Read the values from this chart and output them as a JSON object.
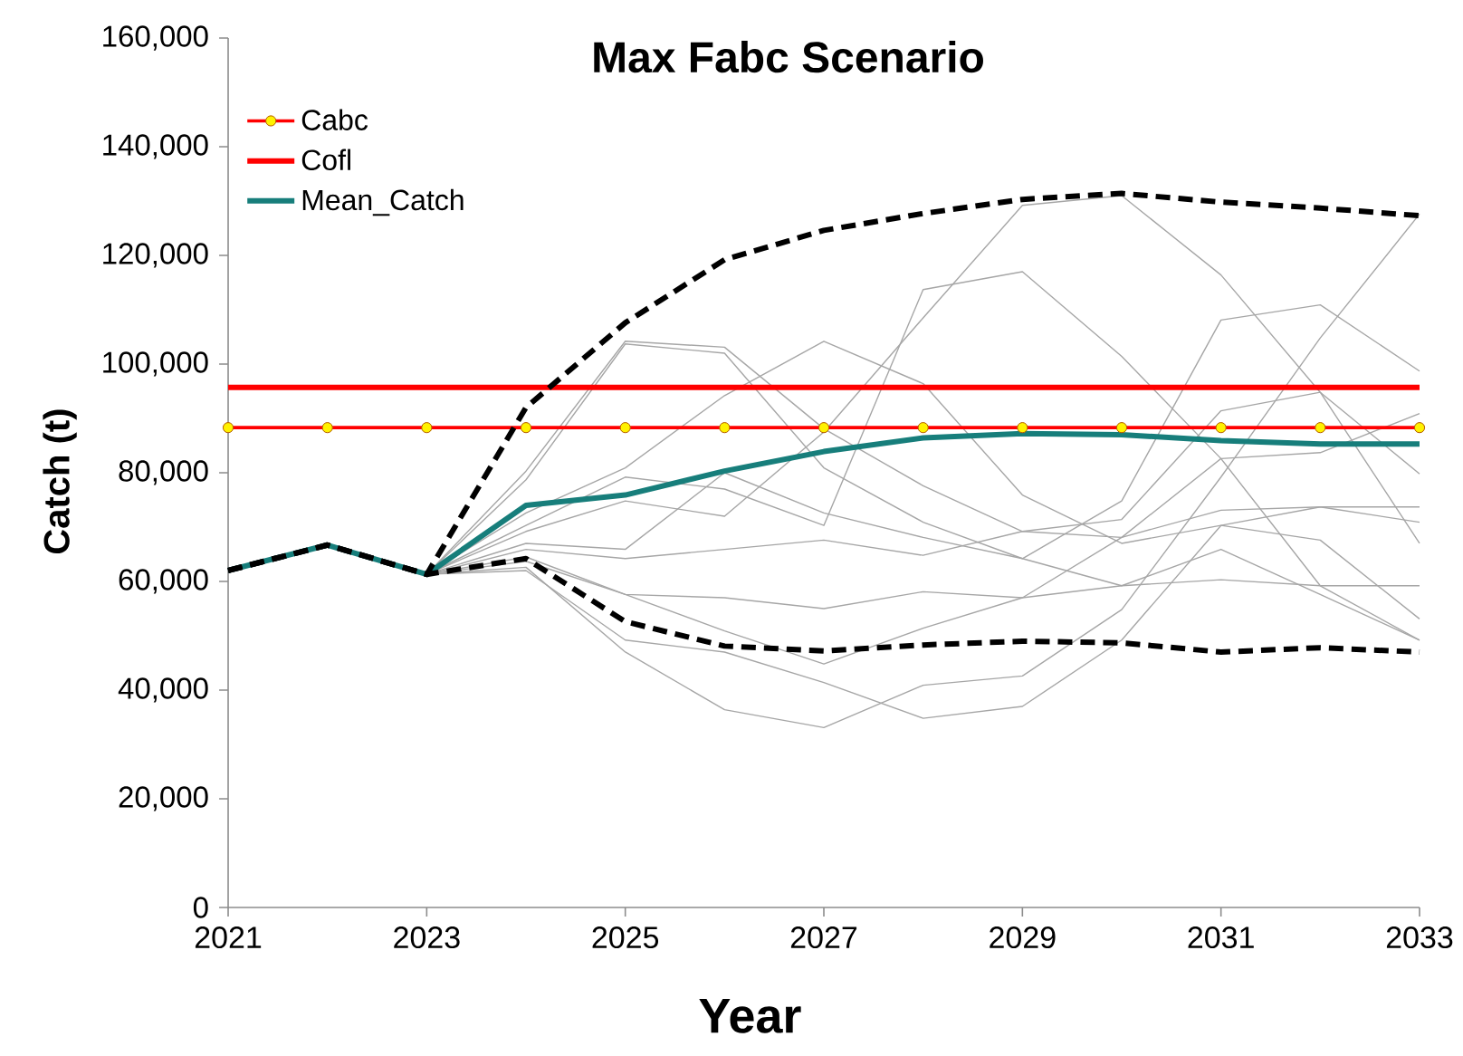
{
  "chart_data": {
    "type": "line",
    "title": "Max Fabc Scenario",
    "xlabel": "Year",
    "ylabel": "Catch (t)",
    "x": [
      2021,
      2022,
      2023,
      2024,
      2025,
      2026,
      2027,
      2028,
      2029,
      2030,
      2031,
      2032,
      2033
    ],
    "xlim": [
      2021,
      2033
    ],
    "xticks": [
      2021,
      2023,
      2025,
      2027,
      2029,
      2031,
      2033
    ],
    "ylim": [
      0,
      160000
    ],
    "yticks": [
      {
        "value": 0,
        "label": "0"
      },
      {
        "value": 20000,
        "label": "20,000"
      },
      {
        "value": 40000,
        "label": "40,000"
      },
      {
        "value": 60000,
        "label": "60,000"
      },
      {
        "value": 80000,
        "label": "80,000"
      },
      {
        "value": 100000,
        "label": "100,000"
      },
      {
        "value": 120000,
        "label": "120,000"
      },
      {
        "value": 140000,
        "label": "140,000"
      },
      {
        "value": 160000,
        "label": "160,000"
      }
    ],
    "legend": "top left",
    "series": [
      {
        "color": "#a6a6a6",
        "values": [
          null,
          null,
          61300,
          80300,
          104200,
          103100,
          88100,
          77600,
          69200,
          68100,
          73100,
          73700,
          73700
        ]
      },
      {
        "color": "#a6a6a6",
        "values": [
          null,
          null,
          61300,
          78700,
          103700,
          102000,
          80900,
          70900,
          64200,
          59200,
          65900,
          57600,
          49200
        ]
      },
      {
        "color": "#a6a6a6",
        "values": [
          null,
          null,
          61300,
          72600,
          80900,
          94200,
          104200,
          96400,
          75900,
          67000,
          70300,
          67600,
          53100
        ]
      },
      {
        "color": "#a6a6a6",
        "values": [
          null,
          null,
          61300,
          70300,
          79200,
          77000,
          70300,
          113700,
          117000,
          101400,
          82600,
          59200,
          49200
        ]
      },
      {
        "color": "#a6a6a6",
        "values": [
          null,
          null,
          61300,
          69200,
          74800,
          72000,
          87500,
          108500,
          129200,
          131000,
          116400,
          94800,
          67000
        ]
      },
      {
        "color": "#a6a6a6",
        "values": [
          null,
          null,
          61300,
          67000,
          65900,
          80000,
          72600,
          68100,
          64200,
          74800,
          108100,
          110900,
          98700
        ]
      },
      {
        "color": "#a6a6a6",
        "values": [
          null,
          null,
          61300,
          65900,
          64200,
          65900,
          67600,
          64800,
          69200,
          71400,
          91400,
          94800,
          79800
        ]
      },
      {
        "color": "#a6a6a6",
        "values": [
          null,
          null,
          61300,
          63700,
          57600,
          57000,
          55000,
          58100,
          57000,
          68100,
          82600,
          83700,
          90900
        ]
      },
      {
        "color": "#a6a6a6",
        "values": [
          null,
          null,
          61300,
          62600,
          47000,
          36400,
          33100,
          40900,
          42600,
          54800,
          79200,
          104800,
          127600
        ]
      },
      {
        "color": "#a6a6a6",
        "values": [
          null,
          null,
          61300,
          62000,
          49200,
          47000,
          41400,
          34800,
          37000,
          49200,
          70300,
          73700,
          70900
        ]
      },
      {
        "color": "#a6a6a6",
        "values": [
          null,
          null,
          61300,
          64500,
          57600,
          50900,
          44800,
          51400,
          57000,
          59200,
          60300,
          59200,
          59200
        ]
      },
      {
        "name": "Cabc",
        "color": "#ff0000",
        "marker": "circle",
        "values": [
          88300,
          88300,
          88300,
          88300,
          88300,
          88300,
          88300,
          88300,
          88300,
          88300,
          88300,
          88300,
          88300
        ]
      },
      {
        "name": "Cofl",
        "color": "#ff0000",
        "values": [
          95700,
          95700,
          95700,
          95700,
          95700,
          95700,
          95700,
          95700,
          95700,
          95700,
          95700,
          95700,
          95700
        ]
      },
      {
        "name": "Mean_Catch",
        "color": "#177e7b",
        "values": [
          62000,
          66700,
          61300,
          74000,
          75900,
          80300,
          83900,
          86400,
          87200,
          87000,
          85900,
          85300,
          85300
        ]
      },
      {
        "color": "#000000",
        "line_style": "dashed",
        "values": [
          62000,
          66700,
          61300,
          92000,
          107600,
          119200,
          124600,
          127700,
          130300,
          131400,
          129800,
          128700,
          127300
        ]
      },
      {
        "color": "#000000",
        "line_style": "dashed",
        "values": [
          62000,
          66700,
          61300,
          64200,
          52600,
          48100,
          47200,
          48300,
          49000,
          48700,
          47000,
          47800,
          47000
        ]
      }
    ]
  }
}
